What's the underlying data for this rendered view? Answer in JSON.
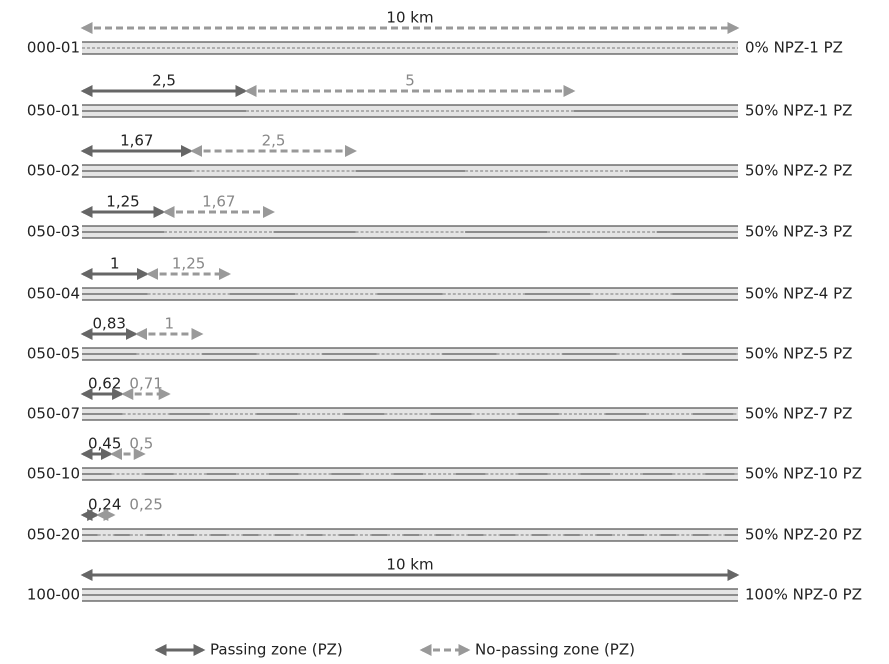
{
  "rows": [
    {
      "id": "000-01",
      "npz_label": "10 km",
      "right": "0% NPZ-1 PZ"
    },
    {
      "id": "050-01",
      "pz_label": "2,5",
      "npz_label": "5",
      "right": "50% NPZ-1 PZ"
    },
    {
      "id": "050-02",
      "pz_label": "1,67",
      "npz_label": "2,5",
      "right": "50% NPZ-2 PZ"
    },
    {
      "id": "050-03",
      "pz_label": "1,25",
      "npz_label": "1,67",
      "right": "50% NPZ-3 PZ"
    },
    {
      "id": "050-04",
      "pz_label": "1",
      "npz_label": "1,25",
      "right": "50% NPZ-4 PZ"
    },
    {
      "id": "050-05",
      "pz_label": "0,83",
      "npz_label": "1",
      "right": "50% NPZ-5 PZ"
    },
    {
      "id": "050-07",
      "pz_label": "0,62",
      "npz_label": "0,71",
      "right": "50% NPZ-7 PZ"
    },
    {
      "id": "050-10",
      "pz_label": "0,45",
      "npz_label": "0,5",
      "right": "50% NPZ-10 PZ"
    },
    {
      "id": "050-20",
      "pz_label": "0,24",
      "npz_label": "0,25",
      "right": "50% NPZ-20 PZ"
    },
    {
      "id": "100-00",
      "pz_label": "10 km",
      "right": "100% NPZ-0 PZ"
    }
  ],
  "legend": {
    "passing": "Passing zone (PZ)",
    "no_passing": "No-passing zone (PZ)"
  }
}
